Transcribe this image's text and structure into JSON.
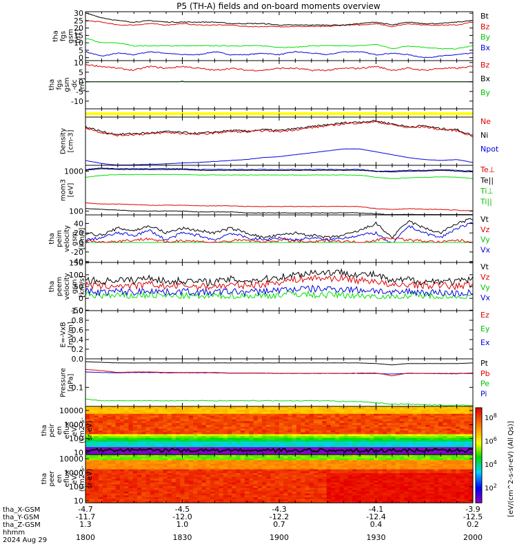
{
  "title": "P5 (TH-A) fields and on-board moments overview",
  "colors": {
    "black": "#000000",
    "red": "#e00000",
    "green": "#00e000",
    "blue": "#0000e0",
    "yellow": "#ffff00"
  },
  "panels": [
    {
      "ylabel": [
        "tha",
        "fgs",
        "gsm",
        "[nT]"
      ],
      "ylim": [
        -2,
        31
      ],
      "yticks": [
        "30",
        "25",
        "20",
        "15",
        "10",
        "5",
        "0"
      ],
      "ytickvals": [
        30,
        25,
        20,
        15,
        10,
        5,
        0
      ],
      "legend": [
        {
          "label": "Bt",
          "color": "#000000"
        },
        {
          "label": "Bz",
          "color": "#e00000"
        },
        {
          "label": "By",
          "color": "#00c000"
        },
        {
          "label": "Bx",
          "color": "#0000e0"
        }
      ]
    },
    {
      "ylabel": [
        "tha",
        "fgs",
        "gsm",
        "-dc",
        "[nT]"
      ],
      "ylim": [
        -14,
        11
      ],
      "yticks": [
        "10",
        "5",
        "0",
        "-5",
        "-10"
      ],
      "ytickvals": [
        10,
        5,
        0,
        -5,
        -10
      ],
      "legend": [
        {
          "label": "Bz",
          "color": "#e00000"
        },
        {
          "label": "Bx",
          "color": "#000000"
        },
        {
          "label": "By",
          "color": "#00c000"
        }
      ]
    },
    {
      "ylabel": [],
      "ylim": [
        0,
        1
      ],
      "yticks": [],
      "ytickvals": [],
      "legend": []
    },
    {
      "ylabel": [
        "Density",
        "[cm-3]"
      ],
      "ylim": [
        0,
        1
      ],
      "yticks": [],
      "ytickvals": [],
      "legend": [
        {
          "label": "Ne",
          "color": "#e00000"
        },
        {
          "label": "Ni",
          "color": "#000000"
        },
        {
          "label": "Npot",
          "color": "#0000e0"
        }
      ]
    },
    {
      "ylabel": [
        "mom3",
        "[eV]"
      ],
      "ylim": [
        80,
        1400
      ],
      "log": true,
      "yticks": [
        "1000",
        "100"
      ],
      "ytickvals": [
        1000,
        100
      ],
      "legend": [
        {
          "label": "Te⊥",
          "color": "#e00000"
        },
        {
          "label": "Te||",
          "color": "#000000"
        },
        {
          "label": "Ti⊥",
          "color": "#00c000"
        },
        {
          "label": "Ti||",
          "color": "#00c000"
        }
      ]
    },
    {
      "ylabel": [
        "tha",
        "peim",
        "velocity",
        "gsm",
        "[km/s]"
      ],
      "ylim": [
        -42,
        58
      ],
      "yticks": [
        "40",
        "20",
        "0",
        "-20",
        "-40"
      ],
      "ytickvals": [
        40,
        20,
        0,
        -20,
        -40
      ],
      "legend": [
        {
          "label": "Vt",
          "color": "#000000"
        },
        {
          "label": "Vz",
          "color": "#e00000"
        },
        {
          "label": "Vy",
          "color": "#00c000"
        },
        {
          "label": "Vx",
          "color": "#0000e0"
        }
      ]
    },
    {
      "ylabel": [
        "tha",
        "peem",
        "velocity",
        "gsm",
        "[km/s]"
      ],
      "ylim": [
        -52,
        152
      ],
      "yticks": [
        "150",
        "100",
        "50",
        "0",
        "-50"
      ],
      "ytickvals": [
        150,
        100,
        50,
        0,
        -50
      ],
      "legend": [
        {
          "label": "Vt",
          "color": "#000000"
        },
        {
          "label": "Vz",
          "color": "#e00000"
        },
        {
          "label": "Vy",
          "color": "#00c000"
        },
        {
          "label": "Vx",
          "color": "#0000e0"
        }
      ]
    },
    {
      "ylabel": [
        "E=-VxB",
        "[mV/m]"
      ],
      "ylim": [
        0,
        1
      ],
      "yticks": [
        "1.0",
        "0.8",
        "0.6",
        "0.4",
        "0.2",
        "0.0"
      ],
      "ytickvals": [
        1,
        0.8,
        0.6,
        0.4,
        0.2,
        0
      ],
      "legend": [
        {
          "label": "Ez",
          "color": "#e00000"
        },
        {
          "label": "Ey",
          "color": "#00c000"
        },
        {
          "label": "Ex",
          "color": "#0000e0"
        }
      ]
    },
    {
      "ylabel": [
        "Pressure",
        "[nPa]"
      ],
      "ylim": [
        0.018,
        1.3
      ],
      "log": true,
      "yticks": [
        "0.1"
      ],
      "ytickvals": [
        0.1
      ],
      "legend": [
        {
          "label": "Pt",
          "color": "#000000"
        },
        {
          "label": "Pb",
          "color": "#e00000"
        },
        {
          "label": "Pe",
          "color": "#00c000"
        },
        {
          "label": "Pi",
          "color": "#0000e0"
        }
      ]
    },
    {
      "ylabel": [
        "tha",
        "peir",
        "en",
        "eflux",
        "eV/",
        "(cm2-s-",
        "sr-eV)"
      ],
      "ylim": [
        7,
        20000
      ],
      "log": true,
      "yticks": [
        "10000",
        "1000",
        "100",
        "10"
      ],
      "ytickvals": [
        10000,
        1000,
        100,
        10
      ],
      "legend": []
    },
    {
      "ylabel": [
        "tha",
        "peer",
        "en",
        "eflux",
        "eV/",
        "(cm2-s-",
        "sr-eV)"
      ],
      "ylim": [
        7,
        20000
      ],
      "log": true,
      "yticks": [
        "10000",
        "1000",
        "100",
        "10"
      ],
      "ytickvals": [
        10000,
        1000,
        100,
        10
      ],
      "legend": []
    }
  ],
  "colorbar": {
    "label": "[eV/(cm^2-s-sr-eV) (All Qs)]",
    "ticks": [
      "10^8",
      "10^6",
      "10^4",
      "10^2"
    ]
  },
  "xaxis": {
    "rowlabels": [
      "tha_X-GSM",
      "tha_Y-GSM",
      "tha_Z-GSM",
      "hhmm",
      "2024 Aug 29"
    ],
    "ticks": [
      {
        "t": 0,
        "x": "-4.7",
        "y": "-11.7",
        "z": "1.3",
        "hhmm": "1800"
      },
      {
        "t": 30,
        "x": "-4.5",
        "y": "-12.0",
        "z": "1.0",
        "hhmm": "1830"
      },
      {
        "t": 60,
        "x": "-4.3",
        "y": "-12.2",
        "z": "0.7",
        "hhmm": "1900"
      },
      {
        "t": 90,
        "x": "-4.1",
        "y": "-12.4",
        "z": "0.4",
        "hhmm": "1930"
      },
      {
        "t": 120,
        "x": "-3.9",
        "y": "-12.5",
        "z": "0.2",
        "hhmm": "2000"
      }
    ]
  },
  "chart_data": {
    "type": "line",
    "title": "P5 (TH-A) fields and on-board moments overview",
    "x_minutes_since_1800": [
      0,
      5,
      10,
      15,
      20,
      25,
      30,
      35,
      40,
      45,
      50,
      55,
      60,
      65,
      70,
      75,
      80,
      85,
      90,
      95,
      100,
      105,
      110,
      115,
      120
    ],
    "fgs_gsm": {
      "Bt": [
        30,
        27,
        25,
        24,
        25,
        24,
        24,
        24,
        24,
        23,
        23,
        23,
        22,
        22,
        22,
        22,
        22,
        23,
        24,
        22,
        24,
        23,
        23,
        24,
        25
      ],
      "Bz": [
        25,
        24,
        22,
        22,
        23,
        22,
        23,
        22,
        22,
        22,
        21,
        21,
        21,
        21,
        21,
        21,
        22,
        22,
        23,
        21,
        23,
        22,
        22,
        22,
        24
      ],
      "By": [
        13,
        10,
        10,
        8,
        8,
        8,
        8,
        8,
        8,
        8,
        8,
        8,
        7,
        7,
        8,
        8,
        8,
        8,
        9,
        6,
        8,
        7,
        6,
        6,
        8
      ],
      "Bx": [
        4,
        1,
        3,
        2,
        4,
        3,
        2,
        2,
        4,
        2,
        2,
        3,
        2,
        4,
        3,
        2,
        4,
        4,
        2,
        3,
        2,
        0,
        1,
        2,
        3
      ]
    },
    "fgs_gsm_dc": {
      "Bz": [
        9,
        8,
        7,
        6,
        8,
        7,
        8,
        7,
        6,
        7,
        6,
        6,
        7,
        7,
        6,
        6,
        7,
        7,
        8,
        6,
        7,
        6,
        7,
        7,
        8
      ],
      "Bx": [
        -2,
        -5,
        -3,
        -4,
        -4,
        -2,
        0,
        -2,
        -4,
        -3,
        -2,
        -3,
        -4,
        -3,
        -2,
        -3,
        -4,
        -2,
        -3,
        -5,
        -3,
        -4,
        -2,
        -1,
        0
      ],
      "By": [
        -7,
        -10,
        -9,
        -10,
        -9,
        -8,
        -9,
        -11,
        -10,
        -9,
        -9,
        -10,
        -9,
        -8,
        -9,
        -9,
        -8,
        -9,
        -10,
        -11,
        -9,
        -9,
        -8,
        -9,
        -6
      ]
    },
    "density": {
      "Ne": [
        0.78,
        0.68,
        0.62,
        0.64,
        0.65,
        0.68,
        0.66,
        0.64,
        0.67,
        0.7,
        0.69,
        0.72,
        0.7,
        0.74,
        0.78,
        0.82,
        0.86,
        0.88,
        0.9,
        0.84,
        0.78,
        0.8,
        0.74,
        0.72,
        0.6
      ],
      "Ni": [
        0.8,
        0.7,
        0.64,
        0.66,
        0.67,
        0.7,
        0.68,
        0.66,
        0.69,
        0.72,
        0.71,
        0.74,
        0.72,
        0.76,
        0.8,
        0.84,
        0.88,
        0.9,
        0.92,
        0.86,
        0.8,
        0.82,
        0.76,
        0.74,
        0.62
      ],
      "Npot": [
        0.1,
        0.04,
        0.0,
        0.01,
        0.02,
        0.03,
        0.05,
        0.06,
        0.08,
        0.1,
        0.12,
        0.16,
        0.18,
        0.22,
        0.26,
        0.3,
        0.34,
        0.34,
        0.28,
        0.22,
        0.16,
        0.12,
        0.1,
        0.12,
        0.06
      ]
    },
    "temperature_eV": {
      "Te_perp": [
        1100,
        1200,
        1150,
        1150,
        1150,
        1150,
        1150,
        1100,
        1100,
        1100,
        1100,
        1100,
        1100,
        1100,
        1100,
        1100,
        1100,
        1100,
        1000,
        1000,
        1050,
        1050,
        1100,
        1050,
        1000
      ],
      "Te_par": [
        1050,
        1150,
        1100,
        1100,
        1100,
        1100,
        1100,
        1050,
        1050,
        1050,
        1050,
        1050,
        1050,
        1050,
        1050,
        1050,
        1050,
        1050,
        980,
        960,
        1000,
        1000,
        1050,
        1000,
        950
      ],
      "Ti_perp": [
        160,
        150,
        150,
        145,
        140,
        140,
        140,
        135,
        135,
        135,
        130,
        130,
        130,
        130,
        130,
        130,
        130,
        130,
        115,
        110,
        115,
        110,
        110,
        105,
        100
      ],
      "Ti_par": [
        115,
        110,
        105,
        100,
        100,
        100,
        100,
        95,
        95,
        95,
        90,
        90,
        90,
        90,
        90,
        90,
        90,
        90,
        85,
        80,
        82,
        80,
        80,
        78,
        75
      ],
      "Ti_green": [
        700,
        780,
        820,
        820,
        820,
        820,
        820,
        800,
        800,
        800,
        800,
        800,
        800,
        800,
        800,
        800,
        800,
        790,
        700,
        650,
        680,
        700,
        720,
        700,
        650
      ]
    },
    "peim_velocity": {
      "Vt": [
        20,
        15,
        30,
        25,
        35,
        20,
        30,
        25,
        20,
        30,
        20,
        10,
        15,
        20,
        15,
        10,
        15,
        25,
        40,
        10,
        45,
        30,
        20,
        40,
        50
      ],
      "Vz": [
        5,
        0,
        3,
        5,
        8,
        0,
        5,
        2,
        0,
        3,
        5,
        0,
        5,
        3,
        0,
        5,
        2,
        0,
        5,
        10,
        5,
        3,
        0,
        5,
        0
      ],
      "Vy": [
        -10,
        -5,
        -15,
        -5,
        -20,
        -10,
        -15,
        -5,
        -10,
        -20,
        -15,
        -5,
        -10,
        -25,
        -10,
        -5,
        -10,
        -15,
        -20,
        -30,
        -20,
        -10,
        -15,
        -25,
        -35
      ],
      "Vx": [
        5,
        10,
        20,
        15,
        25,
        5,
        20,
        15,
        5,
        20,
        10,
        5,
        10,
        5,
        10,
        5,
        10,
        15,
        20,
        -5,
        35,
        20,
        10,
        30,
        40
      ]
    },
    "peem_velocity": {
      "Vt": [
        80,
        70,
        80,
        75,
        90,
        70,
        75,
        70,
        70,
        80,
        75,
        80,
        90,
        100,
        110,
        110,
        110,
        100,
        100,
        70,
        80,
        70,
        75,
        70,
        80
      ],
      "Vz": [
        55,
        50,
        55,
        50,
        60,
        50,
        55,
        50,
        50,
        55,
        55,
        60,
        70,
        80,
        85,
        85,
        85,
        75,
        75,
        50,
        60,
        55,
        55,
        50,
        60
      ],
      "Vy": [
        15,
        10,
        10,
        10,
        15,
        10,
        10,
        5,
        10,
        10,
        10,
        10,
        15,
        20,
        15,
        15,
        15,
        10,
        10,
        0,
        10,
        10,
        10,
        5,
        5
      ],
      "Vx": [
        30,
        25,
        30,
        25,
        35,
        25,
        30,
        25,
        25,
        30,
        25,
        30,
        35,
        40,
        40,
        40,
        40,
        35,
        35,
        20,
        30,
        25,
        25,
        20,
        25
      ]
    },
    "pressure_nPa": {
      "Pt": [
        1.0,
        0.95,
        0.9,
        0.9,
        0.9,
        0.9,
        0.9,
        0.9,
        0.9,
        0.9,
        0.9,
        0.9,
        0.9,
        0.9,
        0.9,
        0.9,
        0.9,
        0.9,
        0.85,
        0.75,
        0.85,
        0.85,
        0.85,
        0.85,
        0.9
      ],
      "Pb": [
        0.5,
        0.45,
        0.38,
        0.4,
        0.4,
        0.38,
        0.38,
        0.38,
        0.38,
        0.36,
        0.36,
        0.36,
        0.35,
        0.35,
        0.35,
        0.35,
        0.35,
        0.36,
        0.36,
        0.28,
        0.36,
        0.35,
        0.34,
        0.34,
        0.37
      ],
      "Pe": [
        0.035,
        0.03,
        0.03,
        0.03,
        0.03,
        0.03,
        0.03,
        0.03,
        0.03,
        0.03,
        0.03,
        0.03,
        0.03,
        0.03,
        0.03,
        0.03,
        0.028,
        0.028,
        0.025,
        0.022,
        0.022,
        0.021,
        0.02,
        0.02,
        0.02
      ],
      "Pi": [
        0.4,
        0.38,
        0.37,
        0.38,
        0.38,
        0.37,
        0.37,
        0.37,
        0.37,
        0.36,
        0.36,
        0.36,
        0.35,
        0.35,
        0.35,
        0.35,
        0.35,
        0.35,
        0.35,
        0.33,
        0.35,
        0.35,
        0.35,
        0.35,
        0.35
      ]
    }
  }
}
